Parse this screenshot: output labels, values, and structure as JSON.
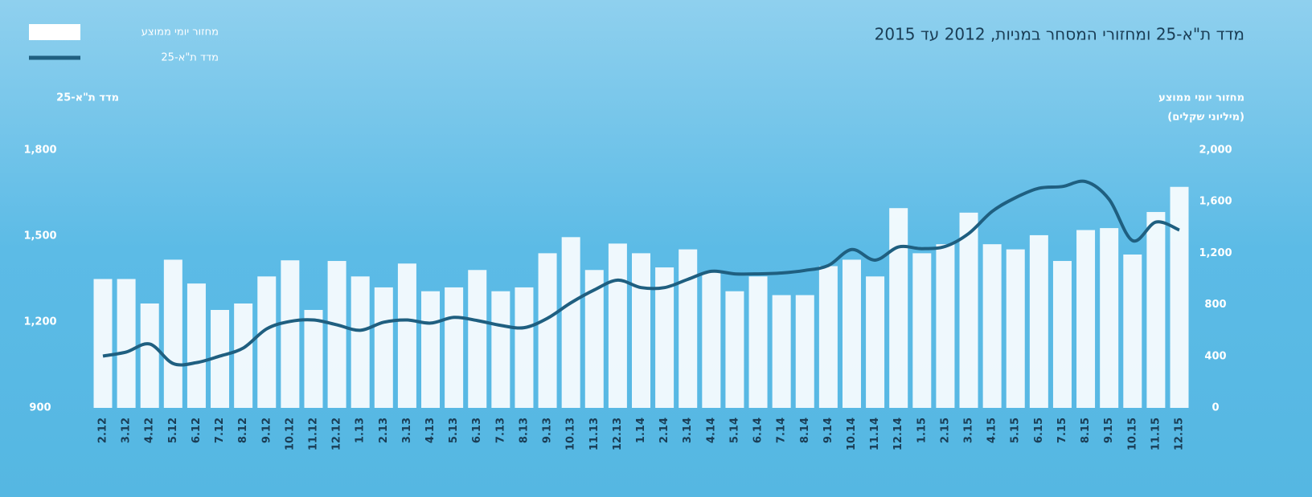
{
  "chart_data": {
    "type": "bar-line",
    "title": "מדד ת\"א-25 ומחזורי המסחר במניות, 2012 עד 2015",
    "y_label": "מדד ת\"א-25",
    "y2_label": [
      "מחזור יומי ממוצע",
      "(מיליוני שקלים)"
    ],
    "categories": [
      "2.12",
      "3.12",
      "4.12",
      "5.12",
      "6.12",
      "7.12",
      "8.12",
      "9.12",
      "10.12",
      "11.12",
      "12.12",
      "1.13",
      "2.13",
      "3.13",
      "4.13",
      "5.13",
      "6.13",
      "7.13",
      "8.13",
      "9.13",
      "10.13",
      "11.13",
      "12.13",
      "1.14",
      "2.14",
      "3.14",
      "4.14",
      "5.14",
      "6.14",
      "7.14",
      "8.14",
      "9.14",
      "10.14",
      "11.14",
      "12.14",
      "1.15",
      "2.15",
      "3.15",
      "4.15",
      "5.15",
      "6.15",
      "7.15",
      "8.15",
      "9.15",
      "10.15",
      "11.15",
      "12.15"
    ],
    "series": [
      {
        "name": "מחזור יומי ממוצע",
        "type": "bar",
        "axis": "y2",
        "color": "#ffffff",
        "values": [
          1000,
          1000,
          810,
          1150,
          965,
          760,
          810,
          1020,
          1145,
          760,
          1140,
          1020,
          935,
          1120,
          905,
          935,
          1070,
          905,
          935,
          1200,
          1325,
          1070,
          1275,
          1200,
          1090,
          1230,
          1050,
          905,
          1020,
          875,
          875,
          1100,
          1150,
          1020,
          1550,
          1200,
          1270,
          1515,
          1270,
          1230,
          1340,
          1140,
          1380,
          1395,
          1190,
          1520,
          1715
        ]
      },
      {
        "name": "מדד ת\"א-25",
        "type": "line",
        "axis": "y",
        "color": "#1f5f80",
        "values": [
          1081,
          1095,
          1123,
          1055,
          1058,
          1081,
          1109,
          1176,
          1202,
          1207,
          1190,
          1171,
          1199,
          1207,
          1196,
          1216,
          1205,
          1188,
          1180,
          1213,
          1267,
          1312,
          1346,
          1320,
          1320,
          1349,
          1377,
          1368,
          1368,
          1371,
          1380,
          1397,
          1453,
          1416,
          1462,
          1456,
          1464,
          1509,
          1586,
          1634,
          1667,
          1673,
          1690,
          1628,
          1484,
          1549,
          1521
        ]
      }
    ],
    "ylim": [
      900,
      1800
    ],
    "yticks": [
      900,
      {
        "value": 1200,
        "label": "1,200"
      },
      {
        "value": 1500,
        "label": "1,500"
      },
      {
        "value": 1800,
        "label": "1,800"
      }
    ],
    "y2lim": [
      0,
      2000
    ],
    "y2ticks": [
      0,
      400,
      800,
      {
        "value": 1200,
        "label": "1,200"
      },
      {
        "value": 1600,
        "label": "1,600"
      },
      {
        "value": 2000,
        "label": "2,000"
      }
    ]
  }
}
